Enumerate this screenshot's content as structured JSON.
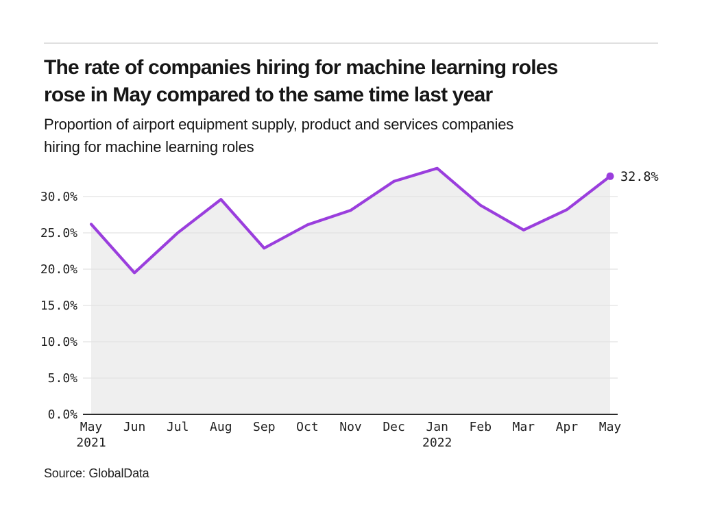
{
  "header": {
    "title_lines": [
      "The rate of companies hiring for machine learning roles",
      "rose in May compared to the same time last year"
    ],
    "subtitle_lines": [
      "Proportion of airport equipment supply, product and services companies",
      "hiring for machine learning roles"
    ]
  },
  "footer": {
    "source": "Source: GlobalData"
  },
  "chart_data": {
    "type": "line",
    "title": "The rate of companies hiring for machine learning roles rose in May compared to the same time last year",
    "subtitle": "Proportion of airport equipment supply, product and services companies hiring for machine learning roles",
    "categories": [
      "May",
      "Jun",
      "Jul",
      "Aug",
      "Sep",
      "Oct",
      "Nov",
      "Dec",
      "Jan",
      "Feb",
      "Mar",
      "Apr",
      "May"
    ],
    "year_markers": [
      {
        "index": 0,
        "label": "2021"
      },
      {
        "index": 8,
        "label": "2022"
      }
    ],
    "values": [
      26.2,
      19.5,
      25.0,
      29.6,
      22.9,
      26.1,
      28.1,
      32.1,
      33.9,
      28.8,
      25.4,
      28.2,
      32.8
    ],
    "unit": "%",
    "ylim": [
      0,
      35.2
    ],
    "yticks": [
      0,
      5,
      10,
      15,
      20,
      25,
      30
    ],
    "ytick_labels": [
      "0.0%",
      "5.0%",
      "10.0%",
      "15.0%",
      "20.0%",
      "25.0%",
      "30.0%"
    ],
    "end_point_label": "32.8%",
    "grid": "horizontal",
    "legend": "none",
    "area_under_line": true,
    "colors": {
      "line": "#9A3EDD",
      "area_fill": "#EFEFEF",
      "grid": "#E2E2E2",
      "axis": "#2B2B2B",
      "tick_text": "#1F1F1F"
    },
    "source": "Source: GlobalData"
  }
}
